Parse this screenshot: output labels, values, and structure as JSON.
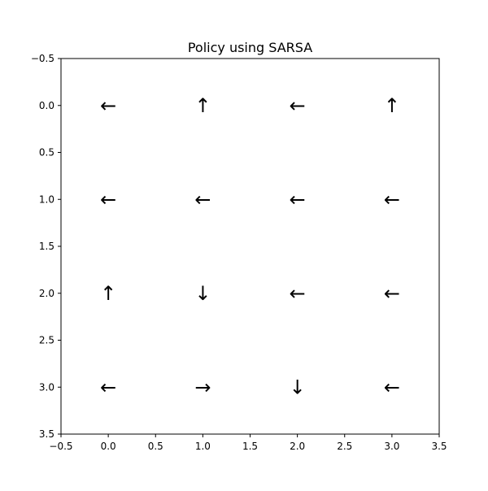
{
  "chart_data": {
    "type": "quiver",
    "title": "Policy using SARSA",
    "xlabel": "",
    "ylabel": "",
    "xlim": [
      -0.5,
      3.5
    ],
    "ylim": [
      3.5,
      -0.5
    ],
    "y_inverted": true,
    "x_ticks": [
      "−0.5",
      "0.0",
      "0.5",
      "1.0",
      "1.5",
      "2.0",
      "2.5",
      "3.0",
      "3.5"
    ],
    "y_ticks": [
      "−0.5",
      "0.0",
      "0.5",
      "1.0",
      "1.5",
      "2.0",
      "2.5",
      "3.0",
      "3.5"
    ],
    "x_tick_values": [
      -0.5,
      0,
      0.5,
      1,
      1.5,
      2,
      2.5,
      3,
      3.5
    ],
    "y_tick_values": [
      -0.5,
      0,
      0.5,
      1,
      1.5,
      2,
      2.5,
      3,
      3.5
    ],
    "grid": false,
    "arrows": [
      {
        "x": 0,
        "y": 0,
        "glyph": "←"
      },
      {
        "x": 1,
        "y": 0,
        "glyph": "↑"
      },
      {
        "x": 2,
        "y": 0,
        "glyph": "←"
      },
      {
        "x": 3,
        "y": 0,
        "glyph": "↑"
      },
      {
        "x": 0,
        "y": 1,
        "glyph": "←"
      },
      {
        "x": 1,
        "y": 1,
        "glyph": "←"
      },
      {
        "x": 2,
        "y": 1,
        "glyph": "←"
      },
      {
        "x": 3,
        "y": 1,
        "glyph": "←"
      },
      {
        "x": 0,
        "y": 2,
        "glyph": "↑"
      },
      {
        "x": 1,
        "y": 2,
        "glyph": "↓"
      },
      {
        "x": 2,
        "y": 2,
        "glyph": "←"
      },
      {
        "x": 3,
        "y": 2,
        "glyph": "←"
      },
      {
        "x": 0,
        "y": 3,
        "glyph": "←"
      },
      {
        "x": 1,
        "y": 3,
        "glyph": "→"
      },
      {
        "x": 2,
        "y": 3,
        "glyph": "↓"
      },
      {
        "x": 3,
        "y": 3,
        "glyph": "←"
      }
    ]
  }
}
